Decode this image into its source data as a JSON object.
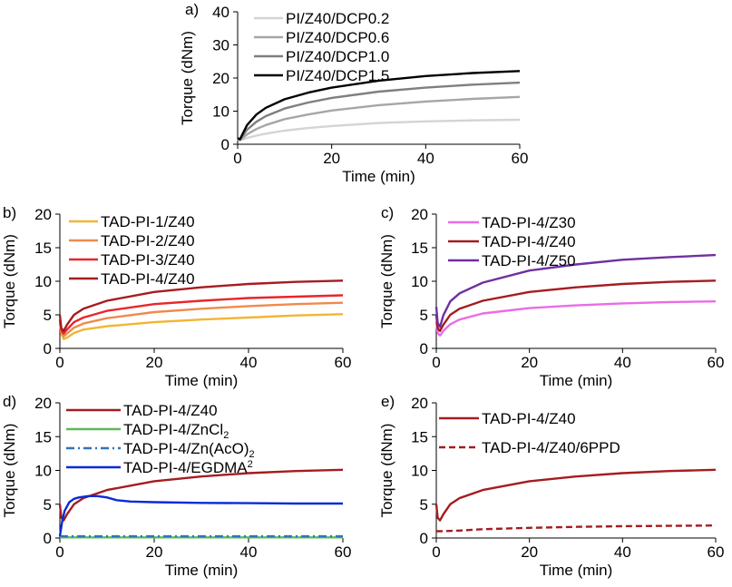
{
  "chart_data": [
    {
      "type": "line",
      "panel_label": "a)",
      "xlabel": "Time (min)",
      "ylabel": "Torque (dNm)",
      "xlim": [
        0,
        60
      ],
      "ylim": [
        0,
        40
      ],
      "xticks": [
        "0",
        "20",
        "40",
        "60"
      ],
      "yticks": [
        "0",
        "10",
        "20",
        "30",
        "40"
      ],
      "legend_position": "top-left",
      "series": [
        {
          "name": "PI/Z40/DCP0.2",
          "color": "#d4d4d4",
          "style": "solid",
          "x": [
            0,
            0.5,
            1,
            2,
            4,
            6,
            10,
            15,
            20,
            30,
            40,
            50,
            60
          ],
          "y": [
            1.5,
            1.2,
            1.4,
            1.9,
            2.6,
            3.2,
            4.1,
            4.9,
            5.5,
            6.4,
            6.9,
            7.2,
            7.4
          ]
        },
        {
          "name": "PI/Z40/DCP0.6",
          "color": "#a6a6a6",
          "style": "solid",
          "x": [
            0,
            0.5,
            1,
            2,
            4,
            6,
            10,
            15,
            20,
            30,
            40,
            50,
            60
          ],
          "y": [
            1.6,
            1.3,
            1.8,
            3.0,
            4.6,
            5.8,
            7.6,
            9.0,
            10.2,
            11.8,
            12.9,
            13.7,
            14.3
          ]
        },
        {
          "name": "PI/Z40/DCP1.0",
          "color": "#7f7f7f",
          "style": "solid",
          "x": [
            0,
            0.5,
            1,
            2,
            4,
            6,
            10,
            15,
            20,
            30,
            40,
            50,
            60
          ],
          "y": [
            1.7,
            1.4,
            2.4,
            4.4,
            6.8,
            8.5,
            10.8,
            12.6,
            14.0,
            15.9,
            17.1,
            18.0,
            18.6
          ]
        },
        {
          "name": "PI/Z40/DCP1.5",
          "color": "#000000",
          "style": "solid",
          "x": [
            0,
            0.5,
            1,
            2,
            4,
            6,
            10,
            15,
            20,
            30,
            40,
            50,
            60
          ],
          "y": [
            1.8,
            1.5,
            3.0,
            5.8,
            9.0,
            11.0,
            13.6,
            15.6,
            17.1,
            19.2,
            20.6,
            21.5,
            22.1
          ]
        }
      ]
    },
    {
      "type": "line",
      "panel_label": "b)",
      "xlabel": "Time (min)",
      "ylabel": "Torque (dNm)",
      "xlim": [
        0,
        60
      ],
      "ylim": [
        0,
        20
      ],
      "xticks": [
        "0",
        "20",
        "40",
        "60"
      ],
      "yticks": [
        "0",
        "5",
        "10",
        "15",
        "20"
      ],
      "legend_position": "top-left",
      "series": [
        {
          "name": "TAD-PI-1/Z40",
          "color": "#f2b533",
          "style": "solid",
          "x": [
            0,
            0.3,
            0.8,
            1.5,
            3,
            5,
            10,
            20,
            30,
            40,
            50,
            60
          ],
          "y": [
            3.8,
            2.2,
            1.4,
            1.6,
            2.3,
            2.8,
            3.3,
            3.9,
            4.3,
            4.6,
            4.9,
            5.1
          ]
        },
        {
          "name": "TAD-PI-2/Z40",
          "color": "#ef8a4c",
          "style": "solid",
          "x": [
            0,
            0.3,
            0.8,
            1.5,
            3,
            5,
            10,
            20,
            30,
            40,
            50,
            60
          ],
          "y": [
            4.0,
            2.4,
            1.8,
            2.2,
            3.1,
            3.7,
            4.5,
            5.4,
            5.9,
            6.3,
            6.6,
            6.8
          ]
        },
        {
          "name": "TAD-PI-3/Z40",
          "color": "#e8262b",
          "style": "solid",
          "x": [
            0,
            0.3,
            0.8,
            1.5,
            3,
            5,
            10,
            20,
            30,
            40,
            50,
            60
          ],
          "y": [
            4.3,
            2.7,
            2.2,
            2.8,
            3.9,
            4.6,
            5.6,
            6.6,
            7.1,
            7.5,
            7.7,
            7.9
          ]
        },
        {
          "name": "TAD-PI-4/Z40",
          "color": "#a51c20",
          "style": "solid",
          "x": [
            0,
            0.3,
            0.8,
            1.5,
            3,
            5,
            10,
            20,
            30,
            40,
            50,
            60
          ],
          "y": [
            5.0,
            3.0,
            2.6,
            3.5,
            5.0,
            5.9,
            7.1,
            8.4,
            9.1,
            9.6,
            9.9,
            10.1
          ]
        }
      ]
    },
    {
      "type": "line",
      "panel_label": "c)",
      "xlabel": "Time (min)",
      "ylabel": "Torque (dNm)",
      "xlim": [
        0,
        60
      ],
      "ylim": [
        0,
        20
      ],
      "xticks": [
        "0",
        "20",
        "40",
        "60"
      ],
      "yticks": [
        "0",
        "5",
        "10",
        "15",
        "20"
      ],
      "legend_position": "top-left",
      "series": [
        {
          "name": "TAD-PI-4/Z30",
          "color": "#ea6ce6",
          "style": "solid",
          "x": [
            0,
            0.3,
            0.8,
            1.5,
            3,
            5,
            10,
            20,
            30,
            40,
            50,
            60
          ],
          "y": [
            4.0,
            2.3,
            1.9,
            2.6,
            3.6,
            4.3,
            5.2,
            6.0,
            6.4,
            6.7,
            6.9,
            7.0
          ]
        },
        {
          "name": "TAD-PI-4/Z40",
          "color": "#a51c20",
          "style": "solid",
          "x": [
            0,
            0.3,
            0.8,
            1.5,
            3,
            5,
            10,
            20,
            30,
            40,
            50,
            60
          ],
          "y": [
            5.0,
            3.0,
            2.6,
            3.5,
            5.0,
            5.9,
            7.1,
            8.4,
            9.1,
            9.6,
            9.9,
            10.1
          ]
        },
        {
          "name": "TAD-PI-4/Z50",
          "color": "#7030a0",
          "style": "solid",
          "x": [
            0,
            0.3,
            0.8,
            1.5,
            3,
            5,
            10,
            20,
            30,
            40,
            50,
            60
          ],
          "y": [
            6.2,
            3.8,
            3.2,
            4.9,
            7.0,
            8.2,
            9.8,
            11.6,
            12.5,
            13.2,
            13.6,
            13.9
          ]
        }
      ]
    },
    {
      "type": "line",
      "panel_label": "d)",
      "xlabel": "Time (min)",
      "ylabel": "Torque (dNm)",
      "xlim": [
        0,
        60
      ],
      "ylim": [
        0,
        20
      ],
      "xticks": [
        "0",
        "20",
        "40",
        "60"
      ],
      "yticks": [
        "0",
        "5",
        "10",
        "15",
        "20"
      ],
      "legend_position": "top-left",
      "series": [
        {
          "name": "TAD-PI-4/Z40",
          "label_main": "TAD-PI-4/Z40",
          "label_sub": "",
          "label_tail": "",
          "color": "#a51c20",
          "style": "solid",
          "x": [
            0,
            0.3,
            0.8,
            1.5,
            3,
            5,
            10,
            20,
            30,
            40,
            50,
            60
          ],
          "y": [
            5.0,
            3.0,
            2.6,
            3.5,
            5.0,
            5.9,
            7.1,
            8.4,
            9.1,
            9.6,
            9.9,
            10.1
          ]
        },
        {
          "name": "TAD-PI-4/ZnCl2",
          "label_main": "TAD-PI-4/ZnCl",
          "label_sub": "2",
          "label_tail": "",
          "color": "#5cb85c",
          "style": "solid",
          "x": [
            0,
            10,
            20,
            30,
            40,
            50,
            60
          ],
          "y": [
            0.1,
            0.1,
            0.1,
            0.1,
            0.1,
            0.1,
            0.1
          ]
        },
        {
          "name": "TAD-PI-4/Zn(AcO)2",
          "label_main": "TAD-PI-4/Zn(AcO)",
          "label_sub": "2",
          "label_tail": "",
          "color": "#2e75b6",
          "style": "dashdot",
          "x": [
            0,
            10,
            20,
            30,
            40,
            50,
            60
          ],
          "y": [
            0.25,
            0.25,
            0.25,
            0.25,
            0.25,
            0.25,
            0.25
          ]
        },
        {
          "name": "TAD-PI-4/EGDMA",
          "label_main": "TAD-PI-4/EGDMA",
          "label_sub": "",
          "label_tail": "2",
          "color": "#0a2ad8",
          "style": "solid",
          "x": [
            0,
            0.5,
            1,
            2,
            3,
            4,
            6,
            8,
            10,
            12,
            15,
            20,
            30,
            40,
            50,
            60
          ],
          "y": [
            0.3,
            2.5,
            4.0,
            5.3,
            5.8,
            6.0,
            6.2,
            6.2,
            6.0,
            5.6,
            5.4,
            5.3,
            5.2,
            5.15,
            5.1,
            5.1
          ]
        }
      ]
    },
    {
      "type": "line",
      "panel_label": "e)",
      "xlabel": "Time (min)",
      "ylabel": "Torque (dNm)",
      "xlim": [
        0,
        60
      ],
      "ylim": [
        0,
        20
      ],
      "xticks": [
        "0",
        "20",
        "40",
        "60"
      ],
      "yticks": [
        "0",
        "5",
        "10",
        "15",
        "20"
      ],
      "legend_position": "top-left",
      "series": [
        {
          "name": "TAD-PI-4/Z40",
          "color": "#a51c20",
          "style": "solid",
          "x": [
            0,
            0.3,
            0.8,
            1.5,
            3,
            5,
            10,
            20,
            30,
            40,
            50,
            60
          ],
          "y": [
            5.0,
            3.0,
            2.6,
            3.5,
            5.0,
            5.9,
            7.1,
            8.4,
            9.1,
            9.6,
            9.9,
            10.1
          ]
        },
        {
          "name": "TAD-PI-4/Z40/6PPD",
          "color": "#a51c20",
          "style": "dashed",
          "x": [
            0,
            1,
            3,
            5,
            10,
            20,
            30,
            40,
            50,
            60
          ],
          "y": [
            1.0,
            1.0,
            1.05,
            1.1,
            1.3,
            1.5,
            1.65,
            1.75,
            1.8,
            1.85
          ]
        }
      ]
    }
  ]
}
